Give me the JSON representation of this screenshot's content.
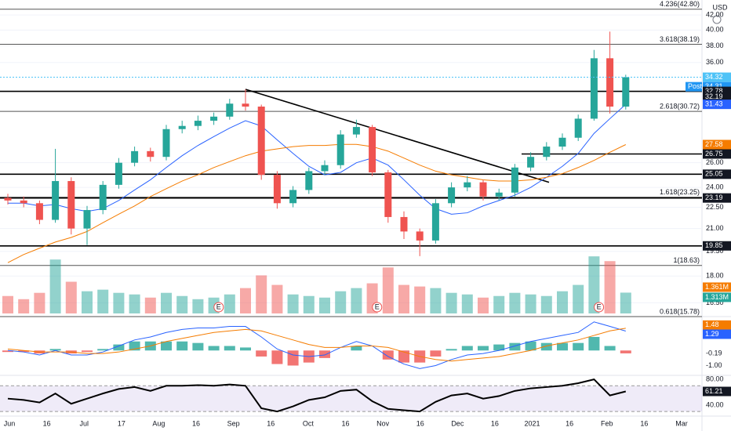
{
  "chart_data": {
    "type": "candlestick",
    "currency": "USD",
    "log_scale": true,
    "ylim": [
      15.94,
      44.1
    ],
    "yticks": [
      {
        "value": 42,
        "label": "42.00"
      },
      {
        "value": 40,
        "label": "40.00"
      },
      {
        "value": 38,
        "label": "38.00"
      },
      {
        "value": 36,
        "label": "36.00"
      },
      {
        "value": 26,
        "label": "26.00"
      },
      {
        "value": 24,
        "label": "24.00"
      },
      {
        "value": 22.5,
        "label": "22.50"
      },
      {
        "value": 21,
        "label": "21.00"
      },
      {
        "value": 19.5,
        "label": "19.50"
      },
      {
        "value": 18,
        "label": "18.00"
      },
      {
        "value": 16.5,
        "label": "16.50"
      }
    ],
    "x_labels": [
      "Jun",
      "16",
      "Jul",
      "17",
      "Aug",
      "16",
      "Sep",
      "16",
      "Oct",
      "16",
      "Nov",
      "16",
      "Dec",
      "16",
      "2021",
      "16",
      "Feb",
      "16",
      "Mar"
    ],
    "up_color": "#26a69a",
    "down_color": "#ef5350",
    "open": [
      23.2,
      23.0,
      22.8,
      21.6,
      24.5,
      21.0,
      22.3,
      24.2,
      26.0,
      27.0,
      26.5,
      29.0,
      29.3,
      29.8,
      30.2,
      31.5,
      31.2,
      25.0,
      22.8,
      23.8,
      25.3,
      25.8,
      28.5,
      29.2,
      25.2,
      21.8,
      20.8,
      20.2,
      22.8,
      24.0,
      24.4,
      23.3,
      23.6,
      25.6,
      26.5,
      27.4,
      28.2,
      30.0,
      36.5,
      31.2
    ],
    "high": [
      23.5,
      23.3,
      23.0,
      27.2,
      24.8,
      22.6,
      24.5,
      26.4,
      27.4,
      27.3,
      29.4,
      29.8,
      30.3,
      30.6,
      32.0,
      33.0,
      31.4,
      25.3,
      24.1,
      25.6,
      26.2,
      28.9,
      29.9,
      29.4,
      25.4,
      22.2,
      21.0,
      23.1,
      24.4,
      24.9,
      24.6,
      23.9,
      25.9,
      26.9,
      27.8,
      28.6,
      30.4,
      37.5,
      39.8,
      34.6
    ],
    "low": [
      22.7,
      22.5,
      21.3,
      21.4,
      20.6,
      19.9,
      22.0,
      23.9,
      25.7,
      26.1,
      26.2,
      28.6,
      28.9,
      29.4,
      29.9,
      30.8,
      24.6,
      22.4,
      22.5,
      23.5,
      25.0,
      25.5,
      28.2,
      24.9,
      21.4,
      20.3,
      19.2,
      20.0,
      22.5,
      23.7,
      23.0,
      23.0,
      23.3,
      25.3,
      26.2,
      27.1,
      27.9,
      29.8,
      30.5,
      30.9
    ],
    "close": [
      23.0,
      22.8,
      21.6,
      24.5,
      21.0,
      22.3,
      24.2,
      26.0,
      27.0,
      26.5,
      29.0,
      29.3,
      29.8,
      30.2,
      31.5,
      31.2,
      25.0,
      22.8,
      23.8,
      25.3,
      25.8,
      28.5,
      29.2,
      25.2,
      21.8,
      20.8,
      20.2,
      22.8,
      24.0,
      24.4,
      23.3,
      23.6,
      25.6,
      26.5,
      27.4,
      28.2,
      30.0,
      36.5,
      31.2,
      34.32
    ],
    "moving_averages": [
      {
        "color": "#2962ff",
        "values": [
          22.8,
          22.8,
          22.6,
          22.7,
          22.4,
          22.2,
          22.4,
          23.0,
          23.8,
          24.6,
          25.6,
          26.6,
          27.5,
          28.3,
          29.1,
          29.8,
          29.3,
          28.0,
          26.8,
          25.7,
          25.0,
          25.2,
          26.0,
          26.4,
          25.8,
          24.6,
          23.4,
          22.4,
          22.0,
          22.1,
          22.6,
          23.0,
          23.4,
          24.0,
          24.8,
          25.7,
          26.8,
          28.6,
          30.0,
          31.43
        ]
      },
      {
        "color": "#f57c00",
        "values": [
          18.8,
          19.3,
          19.7,
          20.1,
          20.4,
          20.8,
          21.4,
          22.0,
          22.6,
          23.3,
          23.9,
          24.5,
          25.0,
          25.6,
          26.1,
          26.6,
          27.0,
          27.2,
          27.4,
          27.5,
          27.5,
          27.6,
          27.6,
          27.4,
          27.0,
          26.4,
          25.8,
          25.3,
          25.0,
          24.8,
          24.6,
          24.5,
          24.5,
          24.6,
          24.8,
          25.1,
          25.6,
          26.2,
          26.9,
          27.58
        ]
      }
    ],
    "fib_levels": [
      {
        "value": 42.8,
        "label": "4.236(42.80)"
      },
      {
        "value": 38.19,
        "label": "3.618(38.19)"
      },
      {
        "value": 30.72,
        "label": "2.618(30.72)"
      },
      {
        "value": 23.25,
        "label": "1.618(23.25)"
      },
      {
        "value": 18.63,
        "label": "1(18.63)"
      },
      {
        "value": 15.78,
        "label": "0.618(15.78)"
      }
    ],
    "support_lines": [
      32.78,
      25.05,
      23.19,
      19.85
    ],
    "resistance_line": 26.75,
    "trendline": [
      33.0,
      24.4
    ],
    "price_labels": [
      {
        "value": 34.32,
        "label": "34.32",
        "color": "#4fc3f7"
      },
      {
        "value": 34.31,
        "label": "34.31",
        "color": "#2196f3",
        "tag": "Post"
      },
      {
        "value": 32.78,
        "label": "32.78",
        "color": "#131722"
      },
      {
        "value": 32.19,
        "label": "32.19",
        "color": "#131722"
      },
      {
        "value": 31.43,
        "label": "31.43",
        "color": "#2962ff"
      },
      {
        "value": 27.58,
        "label": "27.58",
        "color": "#f57c00"
      },
      {
        "value": 26.75,
        "label": "26.75",
        "color": "#131722"
      },
      {
        "value": 25.05,
        "label": "25.05",
        "color": "#131722"
      },
      {
        "value": 23.19,
        "label": "23.19",
        "color": "#131722"
      },
      {
        "value": 19.85,
        "label": "19.85",
        "color": "#131722"
      }
    ],
    "volume": {
      "ylim": [
        0,
        4.2
      ],
      "values": [
        1.1,
        0.9,
        1.3,
        3.4,
        2.0,
        1.4,
        1.5,
        1.3,
        1.2,
        1.0,
        1.3,
        1.1,
        0.9,
        1.0,
        1.2,
        1.6,
        2.4,
        1.8,
        1.2,
        1.1,
        1.0,
        1.4,
        1.6,
        1.9,
        2.9,
        1.8,
        1.7,
        1.6,
        1.3,
        1.2,
        1.0,
        1.1,
        1.3,
        1.2,
        1.1,
        1.4,
        1.8,
        3.6,
        3.3,
        1.313
      ],
      "labels": [
        {
          "value": 1.361,
          "label": "1.361M",
          "color": "#f57c00"
        },
        {
          "value": 1.313,
          "label": "1.313M",
          "color": "#26a69a"
        }
      ]
    },
    "earnings": [
      "E",
      "E",
      "E"
    ],
    "macd": {
      "ylim": [
        -1.6,
        2.2
      ],
      "yticks": [
        {
          "value": -1.0,
          "label": "-1.00"
        }
      ],
      "macd": [
        0.0,
        -0.1,
        -0.3,
        0.0,
        -0.3,
        -0.3,
        -0.1,
        0.3,
        0.7,
        0.9,
        1.2,
        1.4,
        1.5,
        1.5,
        1.6,
        1.6,
        0.9,
        0.1,
        -0.3,
        -0.4,
        -0.3,
        0.2,
        0.6,
        0.3,
        -0.4,
        -0.9,
        -1.2,
        -1.0,
        -0.6,
        -0.3,
        -0.2,
        0.0,
        0.3,
        0.6,
        0.8,
        1.0,
        1.2,
        1.9,
        1.6,
        1.29
      ],
      "signal": [
        0.1,
        0.0,
        -0.1,
        -0.1,
        -0.1,
        -0.2,
        -0.2,
        -0.1,
        0.1,
        0.3,
        0.6,
        0.8,
        1.0,
        1.2,
        1.3,
        1.4,
        1.3,
        1.0,
        0.7,
        0.4,
        0.2,
        0.2,
        0.3,
        0.3,
        0.2,
        -0.1,
        -0.4,
        -0.6,
        -0.7,
        -0.6,
        -0.5,
        -0.4,
        -0.2,
        0.0,
        0.3,
        0.5,
        0.7,
        1.0,
        1.3,
        1.48
      ],
      "histogram": [
        -0.1,
        -0.1,
        -0.2,
        0.1,
        -0.2,
        -0.1,
        0.1,
        0.4,
        0.6,
        0.6,
        0.6,
        0.6,
        0.5,
        0.3,
        0.3,
        0.2,
        -0.4,
        -0.9,
        -1.0,
        -0.8,
        -0.5,
        0.0,
        0.3,
        0.0,
        -0.6,
        -0.8,
        -0.8,
        -0.4,
        0.1,
        0.3,
        0.3,
        0.4,
        0.5,
        0.6,
        0.5,
        0.5,
        0.5,
        0.9,
        0.3,
        -0.19
      ],
      "labels": [
        {
          "value": 1.48,
          "label": "1.48",
          "color": "#f57c00"
        },
        {
          "value": 1.29,
          "label": "1.29",
          "color": "#2962ff"
        },
        {
          "value": -0.19,
          "label": "-0.19",
          "color": "#ffcdd2"
        }
      ]
    },
    "rsi": {
      "ylim": [
        24,
        85
      ],
      "band": [
        30,
        70
      ],
      "yticks": [
        {
          "value": 80,
          "label": "80.00"
        },
        {
          "value": 40,
          "label": "40.00"
        }
      ],
      "values": [
        50,
        48,
        44,
        58,
        42,
        50,
        58,
        65,
        68,
        62,
        70,
        70,
        71,
        70,
        72,
        70,
        35,
        30,
        38,
        48,
        52,
        62,
        64,
        46,
        34,
        32,
        30,
        45,
        55,
        58,
        50,
        54,
        62,
        66,
        68,
        70,
        74,
        80,
        55,
        61.21
      ],
      "label": {
        "value": 61.21,
        "label": "61.21"
      }
    }
  }
}
